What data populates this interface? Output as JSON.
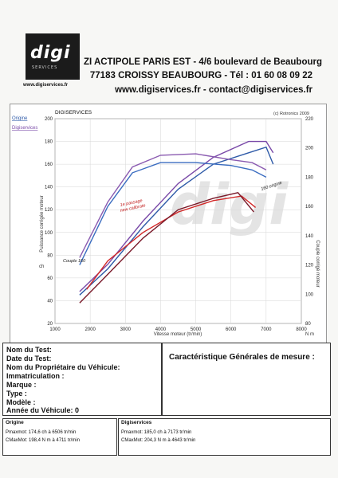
{
  "header": {
    "logo_text": "digi",
    "logo_sub": "SERVICES",
    "logo_url": "www.digiservices.fr",
    "line1": "ZI ACTIPOLE PARIS EST - 4/6 boulevard de Beaubourg",
    "line2": "77183 CROISSY BEAUBOURG - Tél : 01 60 08 09 22",
    "line3": "www.digiservices.fr - contact@digiservices.fr"
  },
  "chart_labels": {
    "company": "DIGISERVICES",
    "copyright": "(c) Rotronics 2009",
    "legend_origine": "Origine",
    "legend_digi": "Digiservices",
    "ylabel_left": "Puissance corrigée moteur",
    "ylabel_right": "Couple corrigé moteur",
    "xlabel": "Vitesse moteur (tr/min)",
    "unit_left": "ch",
    "unit_right": "N m",
    "annot_1": "1e passage\nnew calibrate",
    "annot_2": "Couple 160",
    "annot_3": "160 origine"
  },
  "chart_data": {
    "type": "line",
    "xlim": [
      1000,
      8000
    ],
    "ylim_left": [
      20,
      200
    ],
    "ylim_right": [
      80,
      220
    ],
    "x_ticks": [
      "1000",
      "2000",
      "3000",
      "4000",
      "5000",
      "6000",
      "7000",
      "8000"
    ],
    "y_left_ticks": [
      "20",
      "40",
      "60",
      "80",
      "100",
      "120",
      "140",
      "160",
      "180",
      "200"
    ],
    "y_right_ticks": [
      "80",
      "100",
      "120",
      "140",
      "160",
      "180",
      "200",
      "220"
    ],
    "series": [
      {
        "name": "Origine",
        "axis": "left",
        "color": "#2e5aa8",
        "x": [
          1700,
          2500,
          3500,
          4500,
          5500,
          6500,
          7000,
          7200
        ],
        "y": [
          45,
          68,
          105,
          138,
          160,
          170,
          175,
          160
        ]
      },
      {
        "name": "Digiservices",
        "axis": "left",
        "color": "#7a4aa8",
        "x": [
          1700,
          2500,
          3500,
          4500,
          5500,
          6500,
          7000,
          7200
        ],
        "y": [
          48,
          72,
          110,
          143,
          166,
          180,
          180,
          170
        ]
      },
      {
        "axis": "right",
        "color": "#3a6cc0",
        "x": [
          1700,
          2500,
          3200,
          4000,
          5000,
          6000,
          6600,
          7000
        ],
        "y": [
          120,
          160,
          183,
          190,
          190,
          188,
          185,
          180
        ]
      },
      {
        "axis": "right",
        "color": "#8a5ab0",
        "x": [
          1700,
          2500,
          3200,
          4000,
          5000,
          6000,
          6600,
          7000
        ],
        "y": [
          125,
          163,
          187,
          195,
          196,
          192,
          190,
          185
        ]
      },
      {
        "axis": "left",
        "color": "#d22828",
        "x": [
          1900,
          2500,
          3500,
          4500,
          5500,
          6300,
          6700
        ],
        "y": [
          50,
          75,
          100,
          118,
          128,
          132,
          122
        ]
      },
      {
        "axis": "left",
        "color": "#7a1a2a",
        "x": [
          1700,
          2400,
          3500,
          4500,
          5500,
          6200,
          6650
        ],
        "y": [
          38,
          60,
          95,
          120,
          130,
          135,
          118
        ]
      }
    ]
  },
  "info": {
    "l1": "Nom du Test:",
    "l2": "Date du Test:",
    "l3": "Nom du Propriétaire du Véhicule:",
    "l4": "Immatriculation  :",
    "l5": "Marque  :",
    "l6": "Type  :",
    "l7": "Modèle  :",
    "l8": "Année du Véhicule: 0"
  },
  "mesure_title": "Caractéristique Générales de mesure :",
  "origine_box": {
    "title": "Origine",
    "p": "Pmaxmot: 174,6 ch à 6506 tr/min",
    "c": "CMaxMot: 198,4 N m à 4711 tr/min"
  },
  "digi_box": {
    "title": "Digiservices",
    "p": "Pmaxmot: 185,0 ch à 7173 tr/min",
    "c": "CMaxMot: 204,3 N m à 4643 tr/min"
  }
}
